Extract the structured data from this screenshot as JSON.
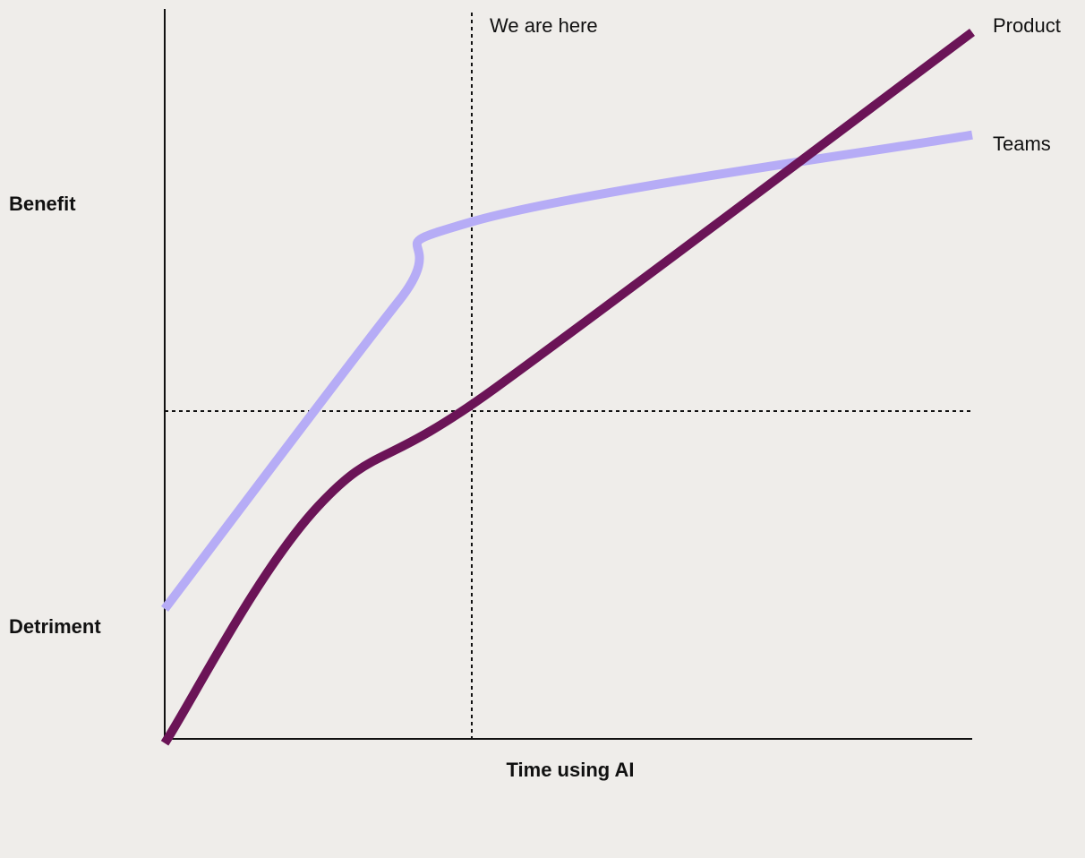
{
  "chart_data": {
    "type": "line",
    "xlabel": "Time using AI",
    "ylabel_top": "Benefit",
    "ylabel_bottom": "Detriment",
    "marker_label": "We are here",
    "grid": false,
    "series": [
      {
        "name": "Product",
        "color": "#6b1457",
        "points": [
          [
            0,
            0.1
          ],
          [
            0.19,
            0.4
          ],
          [
            0.41,
            0.55
          ],
          [
            1.0,
            1.0
          ]
        ]
      },
      {
        "name": "Teams",
        "color": "#b6acf6",
        "points": [
          [
            0,
            0.27
          ],
          [
            0.29,
            0.66
          ],
          [
            0.38,
            0.76
          ],
          [
            1.0,
            0.87
          ]
        ]
      }
    ]
  }
}
